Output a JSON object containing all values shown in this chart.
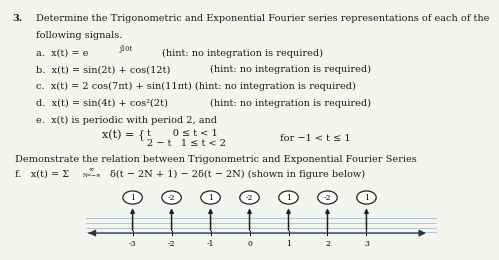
{
  "bg_color": "#f5f5f0",
  "text_color": "#1a1a1a",
  "line1": "3.   Determine the Trigonometric and Exponential Fourier series representations of each of the",
  "line2": "      following signals.",
  "line_a": "   a.   x(t) = e",
  "line_a_sup": "j10t",
  "line_a_hint": "              (hint: no integration is required)",
  "line_b": "   b.   x(t) = sin(2t) + cos(12t)         (hint: no integration is required)",
  "line_c": "   c.   x(t) = 2 cos(7πt) + sin(11πt) (hint: no integration is required)",
  "line_d": "   d.   x(t) = sin(4t) + cos²(2t)          (hint: no integration is required)",
  "line_e": "   e.   x(t) is periodic with period 2, and",
  "piecewise_top": "t       0 ≤ t < 1",
  "piecewise_bot": "2 ⋒ t   1 ≤ t < 2",
  "piecewise_for": "for −1 < t ≤ 1",
  "line_demo": " Demonstrate the relation between Trigonometric and Exponential Fourier Series",
  "line_f": "   f.   x(t) = Σ",
  "f_sup": "∞",
  "f_sub": "N=−∞",
  "f_rest": "δ(t − 2N + 1) − 2δ(t − 2N) (shown in figure below)",
  "impulse_positions": [
    -3,
    -2,
    -1,
    0,
    1,
    2,
    3
  ],
  "impulse_weights": [
    1,
    -2,
    1,
    -2,
    1,
    -2,
    1
  ],
  "plot_bg": "#dce8f0",
  "line_colors": [
    "#8ab4cc",
    "#8ab4cc",
    "#8ab4cc",
    "#8ab4cc",
    "#8ab4cc"
  ]
}
